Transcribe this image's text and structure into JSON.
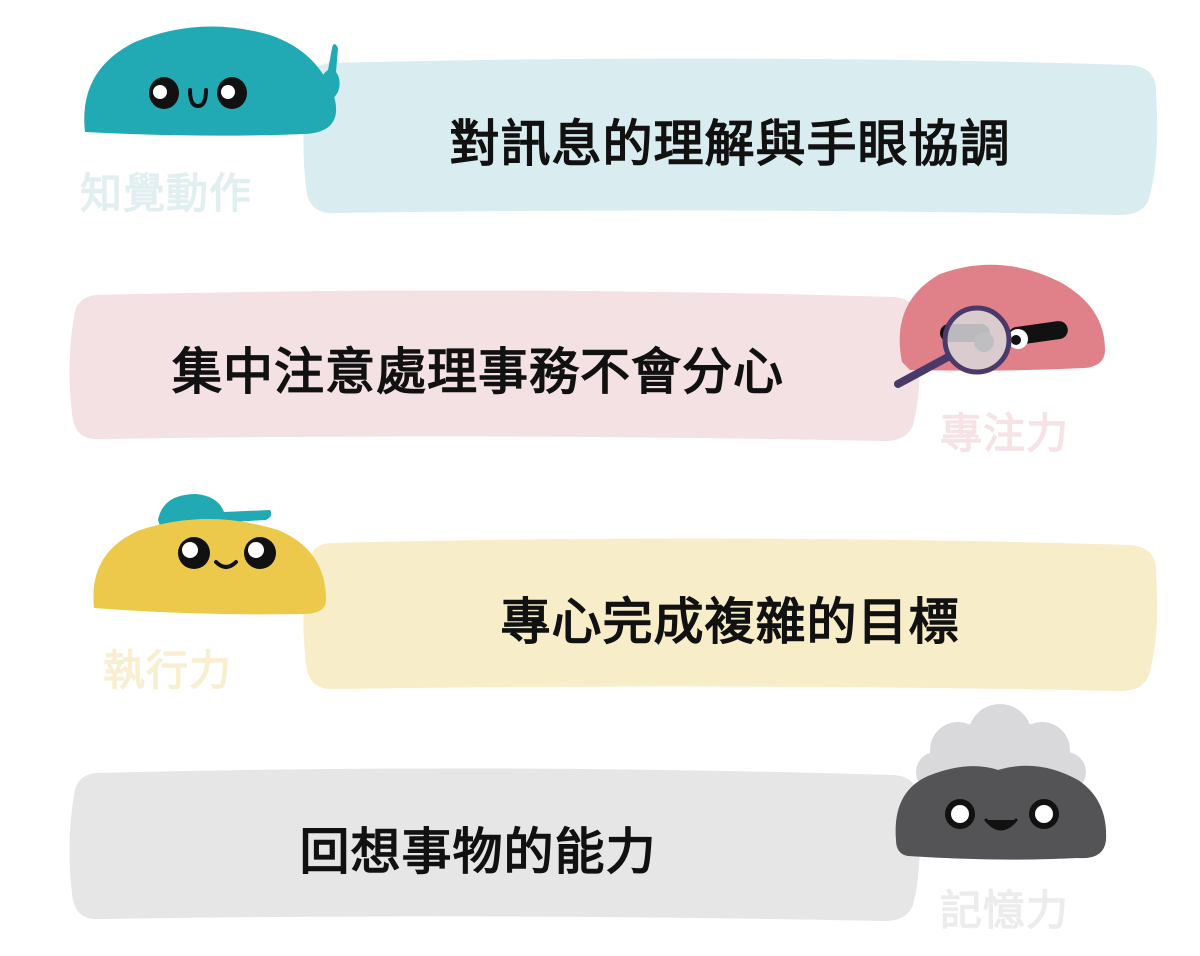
{
  "rows": [
    {
      "category": "知覺動作",
      "description": "對訊息的理解與手眼協調",
      "banner_color": "#d9ecef",
      "blob_color": "#22aab4",
      "caption_color": "#e2eff1",
      "character": "pointing-finger"
    },
    {
      "category": "專注力",
      "description": "集中注意處理事務不會分心",
      "banner_color": "#f3e1e3",
      "blob_color": "#e0818a",
      "caption_color": "#f6e3e5",
      "character": "magnifying-glass"
    },
    {
      "category": "執行力",
      "description": "專心完成複雜的目標",
      "banner_color": "#f7edc8",
      "blob_color": "#ecc94b",
      "caption_color": "#f7efcf",
      "character": "cap"
    },
    {
      "category": "記憶力",
      "description": "回想事物的能力",
      "banner_color": "#e6e6e6",
      "blob_color": "#545456",
      "caption_color": "#ececec",
      "character": "thought-cloud"
    }
  ]
}
